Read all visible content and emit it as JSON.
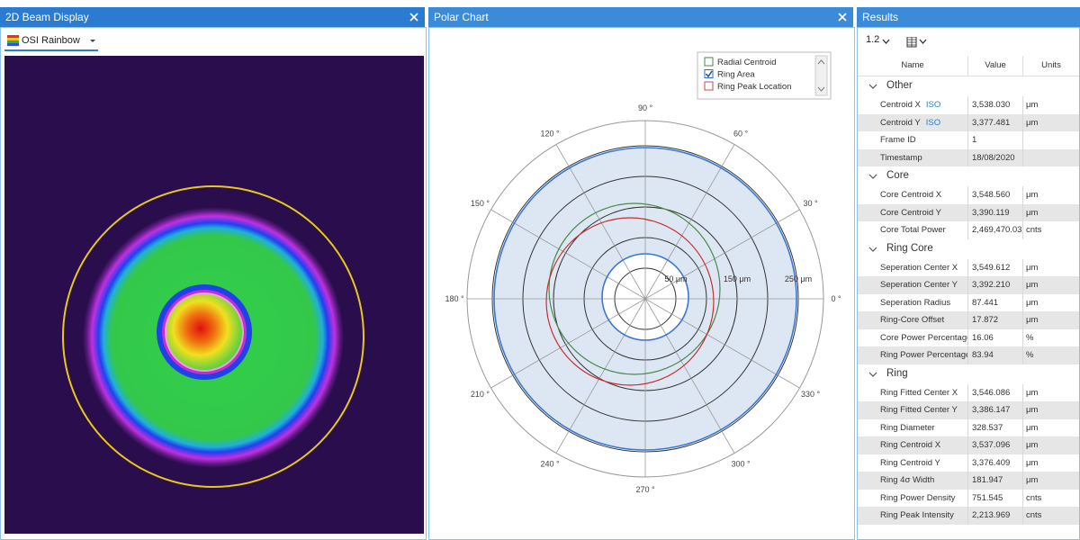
{
  "panels": [
    {
      "title": "2D Beam Display"
    },
    {
      "title": "Polar Chart"
    },
    {
      "title": "Results"
    }
  ],
  "beam_display": {
    "palette": "OSI Rainbow"
  },
  "polar_chart": {
    "legend": [
      {
        "label": "Radial Centroid",
        "checked": false,
        "color": "#4a8a4a"
      },
      {
        "label": "Ring Area",
        "checked": true,
        "color": "#2f6fd0"
      },
      {
        "label": "Ring Peak Location",
        "checked": false,
        "color": "#d04a4a"
      }
    ],
    "angle_labels": [
      "0 °",
      "30 °",
      "60 °",
      "90 °",
      "120 °",
      "150 °",
      "180 °",
      "210 °",
      "240 °",
      "270 °",
      "300 °",
      "330 °"
    ],
    "radius_labels": [
      "50 μm",
      "150 μm",
      "250 μm"
    ]
  },
  "results": {
    "version": "1.2",
    "columns": [
      "Name",
      "Value",
      "Units"
    ],
    "sections": [
      {
        "title": "Other",
        "rows": [
          {
            "name": "Centroid X",
            "tag": "ISO",
            "value": "3,538.030",
            "units": "μm"
          },
          {
            "name": "Centroid Y",
            "tag": "ISO",
            "value": "3,377.481",
            "units": "μm"
          },
          {
            "name": "Frame ID",
            "value": "1"
          },
          {
            "name": "Timestamp",
            "value": "18/08/2020"
          }
        ]
      },
      {
        "title": "Core",
        "rows": [
          {
            "name": "Core Centroid X",
            "value": "3,548.560",
            "units": "μm"
          },
          {
            "name": "Core Centroid Y",
            "value": "3,390.119",
            "units": "μm"
          },
          {
            "name": "Core Total Power",
            "value": "2,469,470.03",
            "units": "cnts"
          }
        ]
      },
      {
        "title": "Ring Core",
        "rows": [
          {
            "name": "Seperation Center X",
            "value": "3,549.612",
            "units": "μm"
          },
          {
            "name": "Seperation Center Y",
            "value": "3,392.210",
            "units": "μm"
          },
          {
            "name": "Seperation Radius",
            "value": "87.441",
            "units": "μm"
          },
          {
            "name": "Ring-Core Offset",
            "value": "17.872",
            "units": "μm"
          },
          {
            "name": "Core Power Percentage",
            "value": "16.06",
            "units": "%"
          },
          {
            "name": "Ring Power Percentage",
            "value": "83.94",
            "units": "%"
          }
        ]
      },
      {
        "title": "Ring",
        "rows": [
          {
            "name": "Ring Fitted Center X",
            "value": "3,546.086",
            "units": "μm"
          },
          {
            "name": "Ring Fitted Center Y",
            "value": "3,386.147",
            "units": "μm"
          },
          {
            "name": "Ring Diameter",
            "value": "328.537",
            "units": "μm"
          },
          {
            "name": "Ring Centroid X",
            "value": "3,537.096",
            "units": "μm"
          },
          {
            "name": "Ring Centroid Y",
            "value": "3,376.409",
            "units": "μm"
          },
          {
            "name": "Ring 4σ Width",
            "value": "181.947",
            "units": "μm"
          },
          {
            "name": "Ring Power Density",
            "value": "751.545",
            "units": "cnts"
          },
          {
            "name": "Ring Peak Intensity",
            "value": "2,213.969",
            "units": "cnts"
          }
        ]
      }
    ]
  }
}
